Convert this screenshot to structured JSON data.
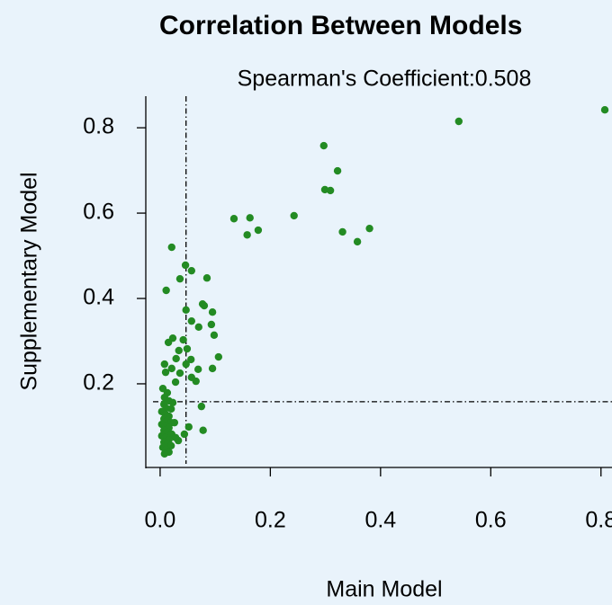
{
  "chart_data": {
    "type": "scatter",
    "title": "Correlation Between Models",
    "subtitle": "Spearman's Coefficient:0.508",
    "x_label": "Main Model",
    "y_label": "Supplementary Model",
    "color": "#238b23",
    "xlim": [
      -0.026,
      0.82
    ],
    "ylim": [
      0.004,
      0.874
    ],
    "xticks": [
      {
        "value": 0,
        "label": "0.0"
      },
      0.2,
      0.4,
      0.6,
      0.8
    ],
    "yticks": [
      0.2,
      0.4,
      0.6,
      0.8
    ],
    "reference_x": 0.047,
    "reference_y": 0.158,
    "series": [
      {
        "name": "Models",
        "x": [
          0.542,
          0.807,
          0.297,
          0.322,
          0.299,
          0.309,
          0.243,
          0.38,
          0.331,
          0.358,
          0.134,
          0.163,
          0.158,
          0.178,
          0.021,
          0.011,
          0.046,
          0.057,
          0.036,
          0.085,
          0.077,
          0.08,
          0.095,
          0.047,
          0.057,
          0.093,
          0.07,
          0.098,
          0.106,
          0.095,
          0.069,
          0.049,
          0.047,
          0.056,
          0.034,
          0.023,
          0.015,
          0.042,
          0.029,
          0.021,
          0.01,
          0.008,
          0.036,
          0.057,
          0.065,
          0.028,
          0.075,
          0.078,
          0.052,
          0.044,
          0.033,
          0.005,
          0.013,
          0.008,
          0.016,
          0.007,
          0.011,
          0.02,
          0.003,
          0.01,
          0.016,
          0.007,
          0.013,
          0.02,
          0.003,
          0.01,
          0.016,
          0.007,
          0.013,
          0.021,
          0.003,
          0.01,
          0.016,
          0.007,
          0.013,
          0.02,
          0.005,
          0.011,
          0.016,
          0.008,
          0.028,
          0.023,
          0.026
        ],
        "values": [
          0.815,
          0.842,
          0.758,
          0.699,
          0.655,
          0.653,
          0.594,
          0.564,
          0.556,
          0.533,
          0.587,
          0.589,
          0.549,
          0.56,
          0.52,
          0.419,
          0.478,
          0.465,
          0.446,
          0.448,
          0.387,
          0.383,
          0.368,
          0.373,
          0.347,
          0.339,
          0.333,
          0.314,
          0.263,
          0.236,
          0.234,
          0.282,
          0.246,
          0.257,
          0.278,
          0.307,
          0.297,
          0.303,
          0.259,
          0.236,
          0.227,
          0.246,
          0.225,
          0.215,
          0.206,
          0.204,
          0.147,
          0.091,
          0.099,
          0.082,
          0.067,
          0.189,
          0.179,
          0.168,
          0.16,
          0.152,
          0.143,
          0.141,
          0.135,
          0.128,
          0.124,
          0.118,
          0.114,
          0.109,
          0.105,
          0.101,
          0.097,
          0.091,
          0.086,
          0.082,
          0.078,
          0.074,
          0.069,
          0.063,
          0.059,
          0.055,
          0.051,
          0.046,
          0.04,
          0.036,
          0.074,
          0.156,
          0.109
        ]
      }
    ]
  }
}
